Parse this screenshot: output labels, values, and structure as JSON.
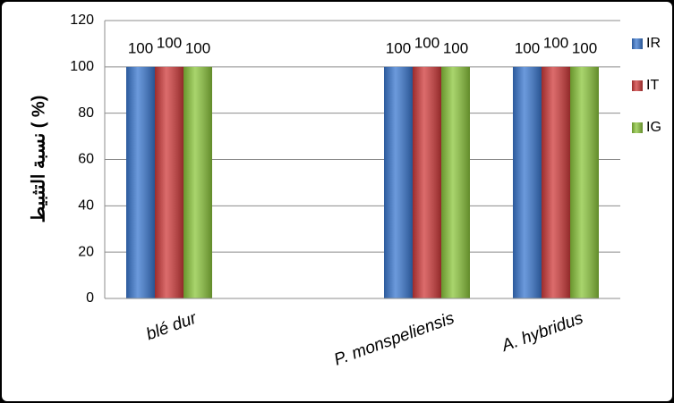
{
  "chart_data": {
    "type": "bar",
    "y_label": "نسبة التثبيط ( %)",
    "categories": [
      "blé dur",
      null,
      "P. monspeliensis",
      "A. hybridus"
    ],
    "series": [
      {
        "name": "IR",
        "color": "#3a78d0",
        "values": [
          100,
          null,
          100,
          100
        ]
      },
      {
        "name": "IT",
        "color": "#d03b3b",
        "values": [
          100,
          null,
          100,
          100
        ]
      },
      {
        "name": "IG",
        "color": "#8cc63c",
        "values": [
          100,
          null,
          100,
          100
        ]
      }
    ],
    "ylim": [
      0,
      120
    ],
    "yticks": [
      0,
      20,
      40,
      60,
      80,
      100,
      120
    ],
    "grid": true,
    "legend": "right"
  }
}
